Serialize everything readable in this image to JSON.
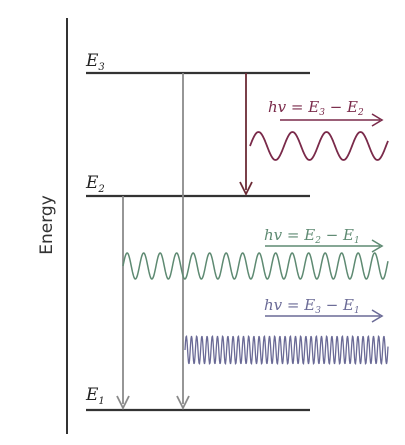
{
  "axis": {
    "label": "Energy"
  },
  "levels": [
    {
      "id": "E3",
      "symbol": "E",
      "subscript": "3"
    },
    {
      "id": "E2",
      "symbol": "E",
      "subscript": "2"
    },
    {
      "id": "E1",
      "symbol": "E",
      "subscript": "1"
    }
  ],
  "transitions": [
    {
      "id": "e3-e2",
      "formula": "hv = E",
      "upper": "3",
      "minus": " − E",
      "lower": "2",
      "color": "#7a2a4a"
    },
    {
      "id": "e2-e1",
      "formula": "hv = E",
      "upper": "2",
      "minus": " − E",
      "lower": "1",
      "color": "#5e8a72"
    },
    {
      "id": "e3-e1",
      "formula": "hv = E",
      "upper": "3",
      "minus": " − E",
      "lower": "1",
      "color": "#6a6a96"
    }
  ],
  "colors": {
    "line": "#333333",
    "arrow_gray": "#8a8a8a",
    "arrow_dark": "#6b2a35"
  }
}
